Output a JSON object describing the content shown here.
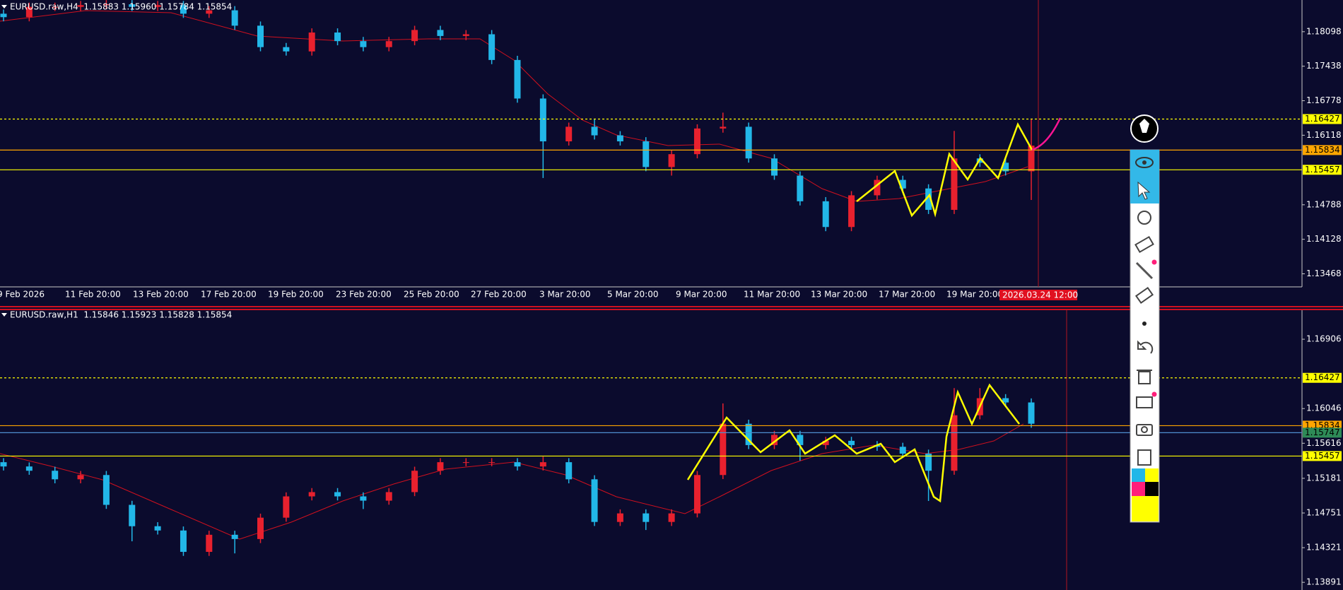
{
  "panels": [
    {
      "header": "EURUSD.raw,H4  1.15883 1.15960 1.15784 1.15854",
      "ylim": [
        1.13218,
        1.18704
      ],
      "yticks": [
        1.18098,
        1.17438,
        1.16778,
        1.16118,
        1.14788,
        1.14128,
        1.13468
      ],
      "levels": [
        {
          "value": 1.16427,
          "color": "#ffff00",
          "dashed": true
        },
        {
          "value": 1.15834,
          "color": "#ffa500",
          "dashed": false
        },
        {
          "value": 1.15457,
          "color": "#ffff00",
          "dashed": false
        }
      ],
      "time_labels": [
        "9 Feb 2026",
        "11 Feb 20:00",
        "13 Feb 20:00",
        "17 Feb 20:00",
        "19 Feb 20:00",
        "23 Feb 20:00",
        "25 Feb 20:00",
        "27 Feb 20:00",
        "3 Mar 20:00",
        "5 Mar 20:00",
        "9 Mar 20:00",
        "11 Mar 20:00",
        "13 Mar 20:00",
        "17 Mar 20:00",
        "19 Mar 20:00"
      ],
      "cursor_time": "2026.03.24 12:00",
      "up_color": "#e8212e",
      "down_color": "#22b7e8",
      "candles": [
        [
          1.18442,
          1.18522,
          1.18296,
          1.18376
        ],
        [
          1.18376,
          1.18653,
          1.18296,
          1.18573
        ],
        [
          1.18573,
          1.18653,
          1.18493,
          1.18573
        ],
        [
          1.18573,
          1.18686,
          1.18493,
          1.18606
        ],
        [
          1.18606,
          1.18702,
          1.18526,
          1.18622
        ],
        [
          1.18622,
          1.18702,
          1.18493,
          1.18573
        ],
        [
          1.18573,
          1.18686,
          1.18493,
          1.18606
        ],
        [
          1.18606,
          1.18686,
          1.18362,
          1.18442
        ],
        [
          1.18442,
          1.18587,
          1.18362,
          1.18507
        ],
        [
          1.18507,
          1.18587,
          1.18133,
          1.18213
        ],
        [
          1.18213,
          1.18293,
          1.17723,
          1.17803
        ],
        [
          1.17803,
          1.17883,
          1.17641,
          1.17721
        ],
        [
          1.17721,
          1.18162,
          1.17641,
          1.18082
        ],
        [
          1.18082,
          1.18162,
          1.17838,
          1.17918
        ],
        [
          1.17918,
          1.17998,
          1.17723,
          1.17803
        ],
        [
          1.17803,
          1.17998,
          1.17723,
          1.17918
        ],
        [
          1.17918,
          1.18211,
          1.17838,
          1.18131
        ],
        [
          1.18131,
          1.18211,
          1.17936,
          1.18016
        ],
        [
          1.18016,
          1.18129,
          1.17936,
          1.18049
        ],
        [
          1.18049,
          1.18129,
          1.17477,
          1.17557
        ],
        [
          1.17557,
          1.17637,
          1.1674,
          1.1682
        ],
        [
          1.1682,
          1.169,
          1.153,
          1.16001
        ],
        [
          1.16001,
          1.1636,
          1.15921,
          1.1628
        ],
        [
          1.1628,
          1.16427,
          1.16036,
          1.16116
        ],
        [
          1.16116,
          1.16196,
          1.15921,
          1.16001
        ],
        [
          1.16001,
          1.16081,
          1.1543,
          1.1551
        ],
        [
          1.1551,
          1.15836,
          1.15346,
          1.15756
        ],
        [
          1.15756,
          1.16327,
          1.15676,
          1.16247
        ],
        [
          1.16247,
          1.1655,
          1.16167,
          1.1628
        ],
        [
          1.1628,
          1.1636,
          1.15594,
          1.15674
        ],
        [
          1.15674,
          1.15754,
          1.15266,
          1.15346
        ],
        [
          1.15346,
          1.15426,
          1.14775,
          1.14855
        ],
        [
          1.14855,
          1.14935,
          1.14283,
          1.14363
        ],
        [
          1.14363,
          1.15049,
          1.14283,
          1.14969
        ],
        [
          1.14969,
          1.15344,
          1.14889,
          1.15264
        ],
        [
          1.15264,
          1.15344,
          1.1502,
          1.151
        ],
        [
          1.151,
          1.1518,
          1.14611,
          1.14691
        ],
        [
          1.14691,
          1.162,
          1.14611,
          1.15674
        ],
        [
          1.15674,
          1.15754,
          1.15512,
          1.15592
        ],
        [
          1.15592,
          1.15672,
          1.15348,
          1.15428
        ],
        [
          1.15428,
          1.16427,
          1.1488,
          1.15919
        ]
      ]
    },
    {
      "header": "EURUSD.raw,H1  1.15846 1.15923 1.15828 1.15854",
      "ylim": [
        1.13796,
        1.17266
      ],
      "yticks": [
        1.16906,
        1.16046,
        1.15616,
        1.15181,
        1.14751,
        1.14321,
        1.13891
      ],
      "levels": [
        {
          "value": 1.16427,
          "color": "#ffff00",
          "dashed": true
        },
        {
          "value": 1.15834,
          "color": "#ffa500",
          "dashed": false
        },
        {
          "value": 1.15747,
          "color": "#4f8fd0",
          "dashed": false,
          "label_color": "#2e8b57"
        },
        {
          "value": 1.15457,
          "color": "#ffff00",
          "dashed": false
        }
      ],
      "up_color": "#e8212e",
      "down_color": "#22b7e8",
      "candles": [
        [
          1.15381,
          1.15431,
          1.15278,
          1.15328
        ],
        [
          1.15328,
          1.15378,
          1.15225,
          1.15275
        ],
        [
          1.15275,
          1.15325,
          1.15119,
          1.15169
        ],
        [
          1.15169,
          1.15272,
          1.15119,
          1.15222
        ],
        [
          1.15222,
          1.15272,
          1.14802,
          1.14852
        ],
        [
          1.14852,
          1.14902,
          1.144,
          1.14587
        ],
        [
          1.14587,
          1.14637,
          1.14484,
          1.14534
        ],
        [
          1.14534,
          1.14584,
          1.14219,
          1.14269
        ],
        [
          1.14269,
          1.14531,
          1.14219,
          1.14481
        ],
        [
          1.14481,
          1.14531,
          1.1425,
          1.14428
        ],
        [
          1.14428,
          1.14743,
          1.14378,
          1.14693
        ],
        [
          1.14693,
          1.15007,
          1.14643,
          1.14957
        ],
        [
          1.14957,
          1.1506,
          1.14907,
          1.1501
        ],
        [
          1.1501,
          1.1506,
          1.14907,
          1.14957
        ],
        [
          1.14957,
          1.15007,
          1.148,
          1.14904
        ],
        [
          1.14904,
          1.1506,
          1.14854,
          1.1501
        ],
        [
          1.1501,
          1.15325,
          1.1496,
          1.15275
        ],
        [
          1.15275,
          1.15431,
          1.15225,
          1.15381
        ],
        [
          1.15381,
          1.15431,
          1.15331,
          1.15381
        ],
        [
          1.15381,
          1.15431,
          1.15331,
          1.15381
        ],
        [
          1.15381,
          1.15431,
          1.15278,
          1.15328
        ],
        [
          1.15328,
          1.1545,
          1.15278,
          1.15381
        ],
        [
          1.15381,
          1.15431,
          1.15119,
          1.15169
        ],
        [
          1.15169,
          1.15219,
          1.1459,
          1.1464
        ],
        [
          1.1464,
          1.14796,
          1.1459,
          1.14746
        ],
        [
          1.14746,
          1.14796,
          1.1454,
          1.1464
        ],
        [
          1.1464,
          1.14796,
          1.1459,
          1.14746
        ],
        [
          1.14746,
          1.15272,
          1.14696,
          1.15222
        ],
        [
          1.15222,
          1.1611,
          1.15172,
          1.15858
        ],
        [
          1.15858,
          1.15908,
          1.15543,
          1.15593
        ],
        [
          1.15593,
          1.1577,
          1.15543,
          1.1572
        ],
        [
          1.1572,
          1.1577,
          1.154,
          1.15593
        ],
        [
          1.15593,
          1.15696,
          1.15543,
          1.15646
        ],
        [
          1.15646,
          1.15696,
          1.15543,
          1.15593
        ],
        [
          1.15593,
          1.15643,
          1.15522,
          1.15572
        ],
        [
          1.15572,
          1.15622,
          1.15437,
          1.15487
        ],
        [
          1.15487,
          1.15537,
          1.149,
          1.15275
        ],
        [
          1.15275,
          1.163,
          1.15225,
          1.15963
        ],
        [
          1.15963,
          1.163,
          1.15913,
          1.16175
        ],
        [
          1.16175,
          1.16225,
          1.16072,
          1.16122
        ],
        [
          1.16122,
          1.16172,
          1.15808,
          1.15858
        ]
      ]
    }
  ]
}
